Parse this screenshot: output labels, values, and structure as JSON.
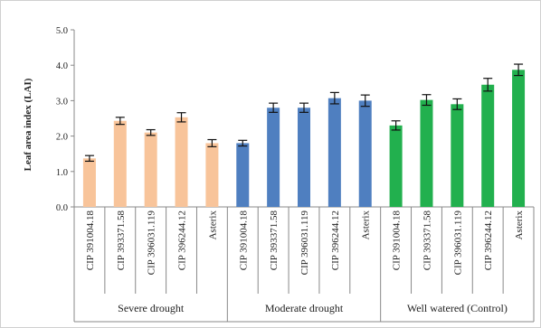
{
  "chart_data": {
    "type": "bar",
    "title": "",
    "ylabel": "Leaf area index (LAI)",
    "xlabel": "",
    "ylim": [
      0,
      5
    ],
    "yticks": [
      "0.0",
      "1.0",
      "2.0",
      "3.0",
      "4.0",
      "5.0"
    ],
    "grid": false,
    "groups": [
      {
        "name": "Severe drought",
        "color": "#f8c49a",
        "categories": [
          "CIP 391004.18",
          "CIP 393371.58",
          "CIP 396031.119",
          "CIP 396244.12",
          "Asterix"
        ],
        "values": [
          1.37,
          2.43,
          2.1,
          2.53,
          1.8
        ],
        "errors": [
          0.08,
          0.1,
          0.08,
          0.13,
          0.1
        ]
      },
      {
        "name": "Moderate drought",
        "color": "#4f7fc0",
        "categories": [
          "CIP 391004.18",
          "CIP 393371.58",
          "CIP 396031.119",
          "CIP 396244.12",
          "Asterix"
        ],
        "values": [
          1.8,
          2.8,
          2.8,
          3.07,
          3.0
        ],
        "errors": [
          0.08,
          0.13,
          0.13,
          0.16,
          0.16
        ]
      },
      {
        "name": "Well watered (Control)",
        "color": "#22b04e",
        "categories": [
          "CIP 391004.18",
          "CIP 393371.58",
          "CIP 396031.119",
          "CIP 396244.12",
          "Asterix"
        ],
        "values": [
          2.3,
          3.02,
          2.9,
          3.45,
          3.87
        ],
        "errors": [
          0.13,
          0.15,
          0.15,
          0.18,
          0.16
        ]
      }
    ]
  }
}
